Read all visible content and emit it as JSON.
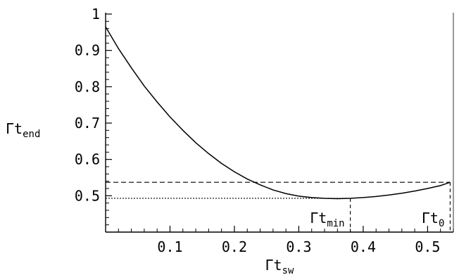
{
  "chart_data": {
    "type": "line",
    "xlabel": {
      "main": "Γt",
      "sub": "sw"
    },
    "ylabel": {
      "main": "Γt",
      "sub": "end"
    },
    "xlim": [
      0,
      0.54
    ],
    "ylim": [
      0.4,
      1.0
    ],
    "x_ticks": [
      {
        "value": 0.1,
        "label": "0.1"
      },
      {
        "value": 0.2,
        "label": "0.2"
      },
      {
        "value": 0.3,
        "label": "0.3"
      },
      {
        "value": 0.4,
        "label": "0.4"
      },
      {
        "value": 0.5,
        "label": "0.5"
      }
    ],
    "y_ticks": [
      {
        "value": 0.5,
        "label": "0.5"
      },
      {
        "value": 0.6,
        "label": "0.6"
      },
      {
        "value": 0.7,
        "label": "0.7"
      },
      {
        "value": 0.8,
        "label": "0.8"
      },
      {
        "value": 0.9,
        "label": "0.9"
      },
      {
        "value": 1.0,
        "label": "1"
      }
    ],
    "grid": false,
    "series": [
      {
        "x": [
          0.0,
          0.02,
          0.04,
          0.06,
          0.08,
          0.1,
          0.12,
          0.14,
          0.16,
          0.18,
          0.2,
          0.22,
          0.24,
          0.26,
          0.28,
          0.3,
          0.32,
          0.34,
          0.36,
          0.38,
          0.4,
          0.42,
          0.44,
          0.46,
          0.48,
          0.5,
          0.52,
          0.535
        ],
        "y": [
          0.965,
          0.905,
          0.852,
          0.802,
          0.758,
          0.717,
          0.68,
          0.646,
          0.616,
          0.589,
          0.566,
          0.546,
          0.53,
          0.516,
          0.506,
          0.499,
          0.495,
          0.493,
          0.492,
          0.493,
          0.495,
          0.498,
          0.502,
          0.507,
          0.513,
          0.52,
          0.528,
          0.537
        ]
      }
    ],
    "annotations": [
      {
        "label": "Γt",
        "sub": "min",
        "x": 0.38,
        "y": 0.493,
        "line": "dotted horizontal + dashed vertical"
      },
      {
        "label": "Γt",
        "sub": "0",
        "x": 0.535,
        "y": 0.537,
        "line": "dashed horizontal + dashed vertical"
      }
    ]
  }
}
